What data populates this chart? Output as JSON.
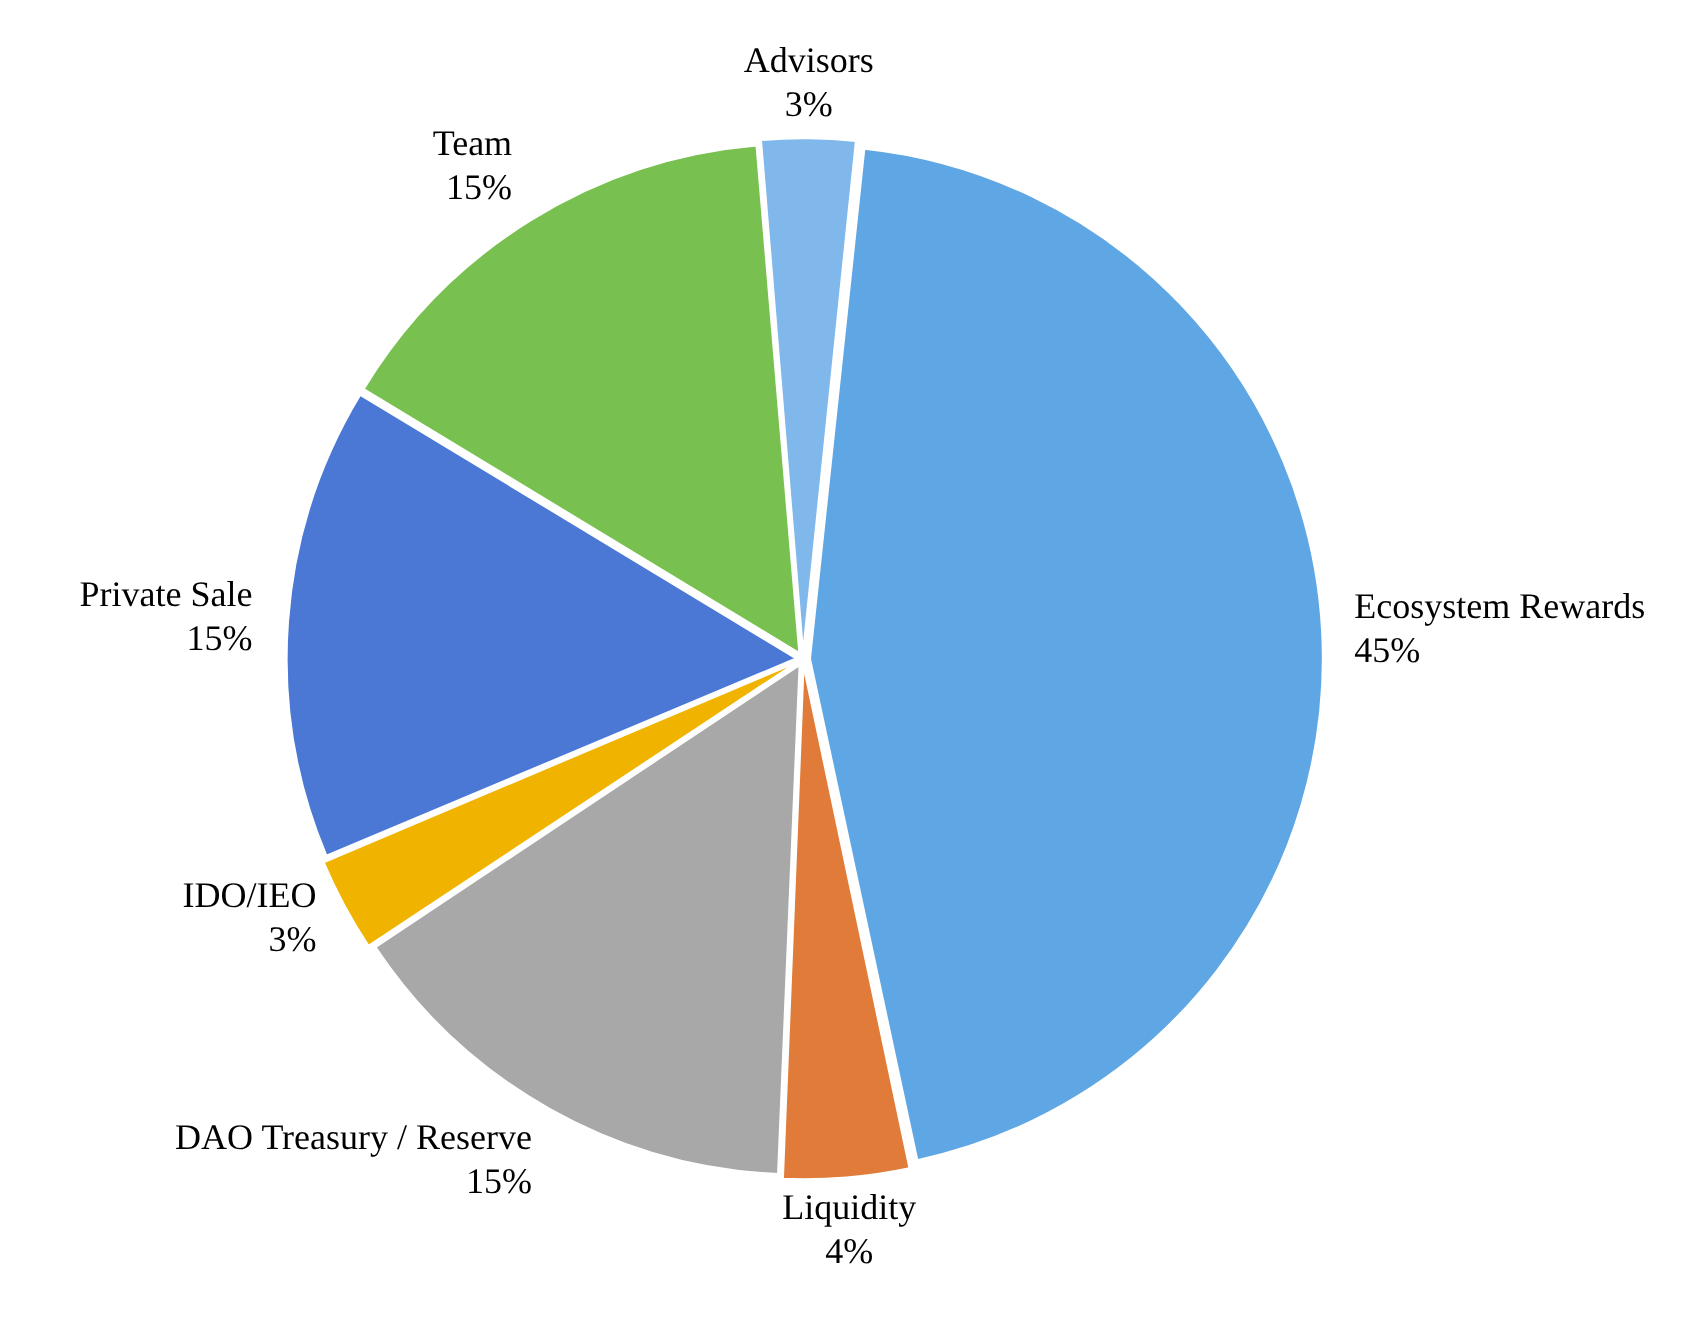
{
  "chart_data": {
    "type": "pie",
    "categories": [
      "Ecosystem Rewards",
      "Liquidity",
      "DAO Treasury / Reserve",
      "IDO/IEO",
      "Private Sale",
      "Team",
      "Advisors"
    ],
    "values": [
      45,
      4,
      15,
      3,
      15,
      15,
      3
    ],
    "value_labels": [
      "45%",
      "4%",
      "15%",
      "3%",
      "15%",
      "15%",
      "3%"
    ],
    "colors": [
      "#5fa6e4",
      "#e07b39",
      "#a8a8a8",
      "#f0b400",
      "#4a78d4",
      "#78c050",
      "#80b8ec"
    ],
    "legend": false
  }
}
